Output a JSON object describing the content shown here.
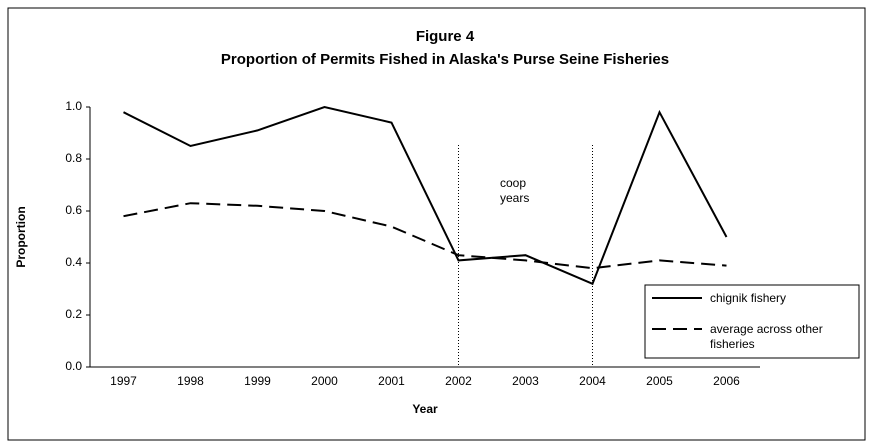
{
  "chart_data": {
    "type": "line",
    "title": "Figure 4",
    "subtitle": "Proportion of Permits Fished in Alaska's Purse Seine Fisheries",
    "xlabel": "Year",
    "ylabel": "Proportion",
    "x": [
      1997,
      1998,
      1999,
      2000,
      2001,
      2002,
      2003,
      2004,
      2005,
      2006
    ],
    "xlim": [
      1996.5,
      2006.5
    ],
    "ylim": [
      0,
      1
    ],
    "yticks": [
      {
        "value": 0,
        "label": "0.0"
      },
      0.2,
      0.4,
      0.6,
      0.8,
      {
        "value": 1,
        "label": "1.0"
      }
    ],
    "series": [
      {
        "name": "chignik fishery",
        "color": "#000000",
        "dash": "solid",
        "values": [
          0.98,
          0.85,
          0.91,
          1.0,
          0.94,
          0.41,
          0.43,
          0.32,
          0.98,
          0.5
        ]
      },
      {
        "name": "average across other fisheries",
        "color": "#000000",
        "dash": "dashed",
        "values": [
          0.58,
          0.63,
          0.62,
          0.6,
          0.54,
          0.43,
          0.41,
          0.38,
          0.41,
          0.39
        ]
      }
    ],
    "vlines": [
      2002,
      2004
    ],
    "annotation": "coop years",
    "legend": "lower right"
  }
}
